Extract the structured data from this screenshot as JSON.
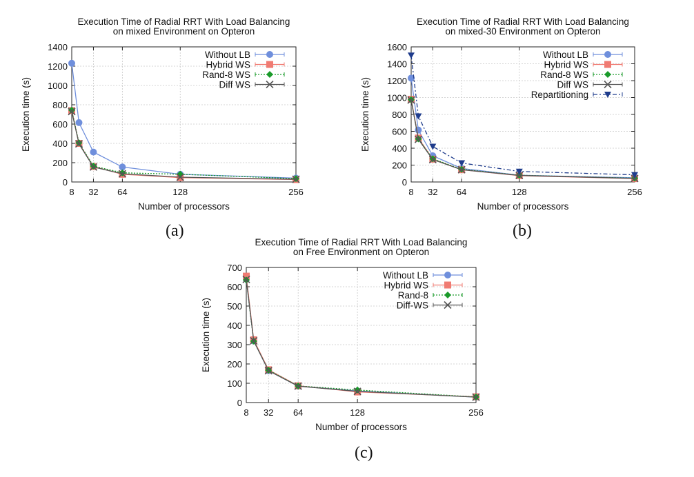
{
  "panels": [
    {
      "sublabel": "(a)",
      "chart_data": {
        "type": "line",
        "title": [
          "Execution Time of Radial RRT With Load Balancing",
          "on mixed Environment on Opteron"
        ],
        "xlabel": "Number of processors",
        "ylabel": "Execution time (s)",
        "xticks": [
          8,
          32,
          64,
          128,
          256
        ],
        "yticks": [
          0,
          200,
          400,
          600,
          800,
          1000,
          1200,
          1400
        ],
        "xlim": [
          8,
          256
        ],
        "ylim": [
          0,
          1400
        ],
        "grid": true,
        "legend_position": "top-right",
        "series": [
          {
            "name": "Without LB",
            "color": "#6f8fdc",
            "marker": "circle",
            "dash": "",
            "x": [
              8,
              16,
              32,
              64,
              128,
              256
            ],
            "y": [
              1230,
              615,
              310,
              155,
              80,
              40
            ]
          },
          {
            "name": "Hybrid WS",
            "color": "#f07b72",
            "marker": "square",
            "dash": "",
            "x": [
              8,
              16,
              32,
              64,
              128,
              256
            ],
            "y": [
              740,
              400,
              160,
              80,
              45,
              25
            ]
          },
          {
            "name": "Rand-8 WS",
            "color": "#1a9a2a",
            "marker": "diamond",
            "dash": "2,2",
            "x": [
              8,
              16,
              32,
              64,
              128,
              256
            ],
            "y": [
              745,
              405,
              165,
              95,
              80,
              35
            ]
          },
          {
            "name": "Diff WS",
            "color": "#555555",
            "marker": "x",
            "dash": "",
            "x": [
              8,
              16,
              32,
              64,
              128,
              256
            ],
            "y": [
              730,
              395,
              155,
              85,
              50,
              28
            ]
          }
        ]
      }
    },
    {
      "sublabel": "(b)",
      "chart_data": {
        "type": "line",
        "title": [
          "Execution Time of Radial RRT With Load Balancing",
          "on mixed-30 Environment on Opteron"
        ],
        "xlabel": "Number of processors",
        "ylabel": "Execution time (s)",
        "xticks": [
          8,
          32,
          64,
          128,
          256
        ],
        "yticks": [
          0,
          200,
          400,
          600,
          800,
          1000,
          1200,
          1400,
          1600
        ],
        "xlim": [
          8,
          256
        ],
        "ylim": [
          0,
          1600
        ],
        "grid": true,
        "legend_position": "top-right",
        "series": [
          {
            "name": "Without LB",
            "color": "#6f8fdc",
            "marker": "circle",
            "dash": "",
            "x": [
              8,
              16,
              32,
              64,
              128,
              256
            ],
            "y": [
              1230,
              615,
              310,
              160,
              80,
              50
            ]
          },
          {
            "name": "Hybrid WS",
            "color": "#f07b72",
            "marker": "square",
            "dash": "",
            "x": [
              8,
              16,
              32,
              64,
              128,
              256
            ],
            "y": [
              980,
              520,
              270,
              145,
              75,
              40
            ]
          },
          {
            "name": "Rand-8 WS",
            "color": "#1a9a2a",
            "marker": "diamond",
            "dash": "2,2",
            "x": [
              8,
              16,
              32,
              64,
              128,
              256
            ],
            "y": [
              975,
              510,
              275,
              150,
              80,
              45
            ]
          },
          {
            "name": "Diff WS",
            "color": "#555555",
            "marker": "x",
            "dash": "",
            "x": [
              8,
              16,
              32,
              64,
              128,
              256
            ],
            "y": [
              970,
              505,
              265,
              145,
              78,
              42
            ]
          },
          {
            "name": "Repartitioning",
            "color": "#1f3c8c",
            "marker": "triangle-down",
            "dash": "6,3,2,3",
            "x": [
              8,
              16,
              32,
              64,
              128,
              256
            ],
            "y": [
              1500,
              780,
              420,
              225,
              125,
              85
            ]
          }
        ]
      }
    },
    {
      "sublabel": "(c)",
      "chart_data": {
        "type": "line",
        "title": [
          "Execution Time of Radial RRT With Load Balancing",
          "on Free Environment on Opteron"
        ],
        "xlabel": "Number of processors",
        "ylabel": "Execution time (s)",
        "xticks": [
          8,
          32,
          64,
          128,
          256
        ],
        "yticks": [
          0,
          100,
          200,
          300,
          400,
          500,
          600,
          700
        ],
        "xlim": [
          8,
          256
        ],
        "ylim": [
          0,
          700
        ],
        "grid": true,
        "legend_position": "top-right",
        "series": [
          {
            "name": "Without LB",
            "color": "#6f8fdc",
            "marker": "circle",
            "dash": "",
            "x": [
              8,
              16,
              32,
              64,
              128,
              256
            ],
            "y": [
              640,
              320,
              165,
              85,
              60,
              28
            ]
          },
          {
            "name": "Hybrid WS",
            "color": "#f07b72",
            "marker": "square",
            "dash": "",
            "x": [
              8,
              16,
              32,
              64,
              128,
              256
            ],
            "y": [
              655,
              325,
              170,
              87,
              55,
              30
            ]
          },
          {
            "name": "Rand-8",
            "color": "#1a9a2a",
            "marker": "diamond",
            "dash": "2,2",
            "x": [
              8,
              16,
              32,
              64,
              128,
              256
            ],
            "y": [
              635,
              318,
              168,
              86,
              65,
              29
            ]
          },
          {
            "name": "Diff-WS",
            "color": "#555555",
            "marker": "x",
            "dash": "",
            "x": [
              8,
              16,
              32,
              64,
              128,
              256
            ],
            "y": [
              638,
              320,
              165,
              85,
              58,
              28
            ]
          }
        ]
      }
    }
  ]
}
